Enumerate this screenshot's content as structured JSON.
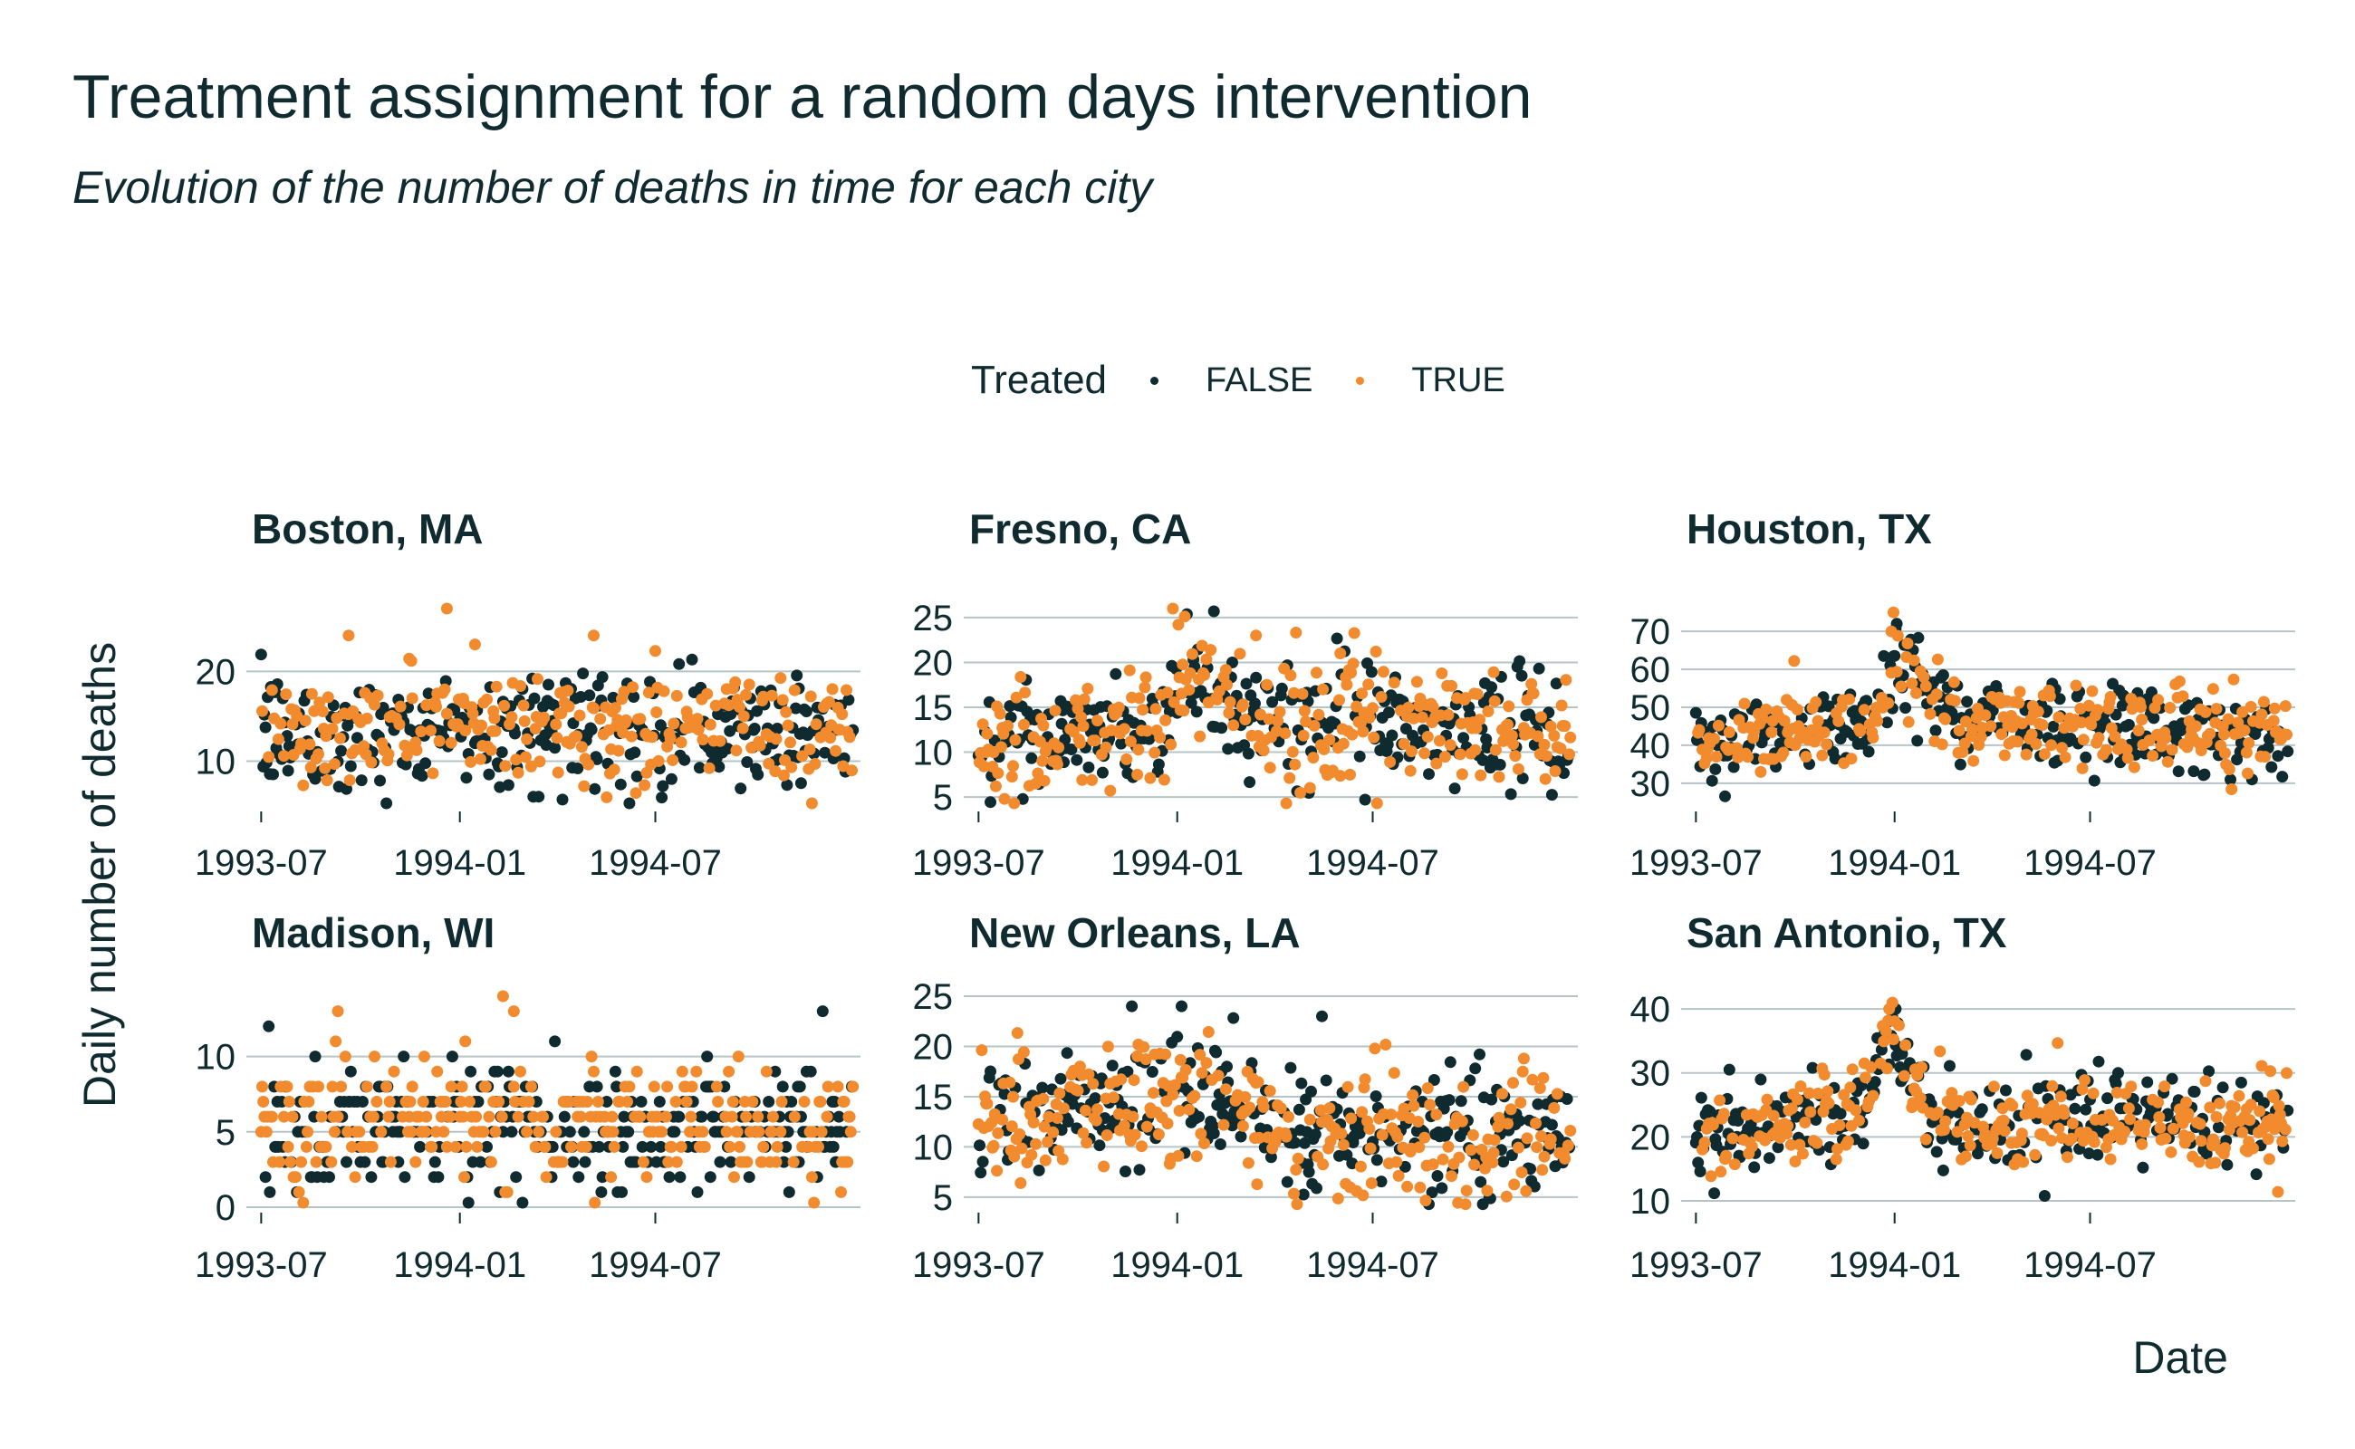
{
  "title": "Treatment assignment for a random days intervention",
  "subtitle": "Evolution of the number of deaths in time for each city",
  "legend": {
    "title": "Treated",
    "items": [
      {
        "label": "FALSE",
        "color": "#0f2b2f"
      },
      {
        "label": "TRUE",
        "color": "#f28a2e"
      }
    ]
  },
  "ylabel": "Daily number of deaths",
  "xlabel": "Date",
  "chart_data": {
    "type": "scatter",
    "layout": "facet-wrap 2 rows x 3 columns",
    "grid": "horizontal major gridlines only",
    "legend_position": "top",
    "x_axis": {
      "range": [
        "1993-07-01",
        "1994-12-31"
      ],
      "ticks": [
        "1993-07",
        "1994-01",
        "1994-07"
      ]
    },
    "series_colors": {
      "FALSE": "#0f2b2f",
      "TRUE": "#f28a2e"
    },
    "panels": [
      {
        "name": "Boston, MA",
        "ylim": [
          5,
          27
        ],
        "yticks": [
          10,
          20
        ],
        "profile": [
          [
            0,
            13
          ],
          [
            0.5,
            14
          ],
          [
            1,
            13.5
          ]
        ],
        "spread": 3.2,
        "treated_share": 0.5,
        "peaks": [
          [
            "1993-12-20",
            27
          ],
          [
            "1994-01-15",
            23
          ],
          [
            "1994-05-05",
            24
          ],
          [
            "1993-09-20",
            24
          ]
        ]
      },
      {
        "name": "Fresno, CA",
        "ylim": [
          4,
          26
        ],
        "yticks": [
          5,
          10,
          15,
          20,
          25
        ],
        "profile": [
          [
            0,
            11
          ],
          [
            0.3,
            13
          ],
          [
            0.35,
            19
          ],
          [
            0.45,
            14
          ],
          [
            1,
            12
          ]
        ],
        "spread": 3.2,
        "treated_share": 0.5,
        "peaks": [
          [
            "1993-12-28",
            26
          ],
          [
            "1994-03-15",
            23
          ],
          [
            "1994-06-01",
            21
          ]
        ]
      },
      {
        "name": "Houston, TX",
        "ylim": [
          24,
          76
        ],
        "yticks": [
          30,
          40,
          50,
          60,
          70
        ],
        "profile": [
          [
            0,
            40
          ],
          [
            0.3,
            46
          ],
          [
            0.35,
            62
          ],
          [
            0.45,
            47
          ],
          [
            1,
            43
          ]
        ],
        "spread": 5.5,
        "treated_share": 0.5,
        "peaks": [
          [
            "1993-12-31",
            75
          ],
          [
            "1994-01-03",
            72
          ],
          [
            "1993-12-29",
            70
          ]
        ]
      },
      {
        "name": "Madison, WI",
        "ylim": [
          0,
          14
        ],
        "yticks": [
          0,
          5,
          10
        ],
        "profile": [
          [
            0,
            5.5
          ],
          [
            1,
            5.5
          ]
        ],
        "spread": 2.0,
        "treated_share": 0.5,
        "integer": true,
        "peaks": [
          [
            "1994-02-10",
            14
          ],
          [
            "1994-02-20",
            13
          ],
          [
            "1993-09-10",
            13
          ]
        ]
      },
      {
        "name": "New Orleans, LA",
        "ylim": [
          4,
          25
        ],
        "yticks": [
          5,
          10,
          15,
          20,
          25
        ],
        "profile": [
          [
            0,
            12
          ],
          [
            0.35,
            15
          ],
          [
            0.6,
            11
          ],
          [
            1,
            11
          ]
        ],
        "spread": 3.2,
        "treated_share": 0.5,
        "peaks": [
          [
            "1994-01-05",
            24
          ],
          [
            "1993-11-20",
            24
          ],
          [
            "1994-05-15",
            23
          ]
        ]
      },
      {
        "name": "San Antonio, TX",
        "ylim": [
          9,
          42
        ],
        "yticks": [
          10,
          20,
          30,
          40
        ],
        "profile": [
          [
            0,
            20
          ],
          [
            0.28,
            24
          ],
          [
            0.33,
            38
          ],
          [
            0.4,
            22
          ],
          [
            1,
            22
          ]
        ],
        "spread": 3.5,
        "treated_share": 0.5,
        "peaks": [
          [
            "1993-12-30",
            41
          ],
          [
            "1994-01-02",
            40
          ],
          [
            "1993-12-27",
            40
          ]
        ]
      }
    ]
  }
}
